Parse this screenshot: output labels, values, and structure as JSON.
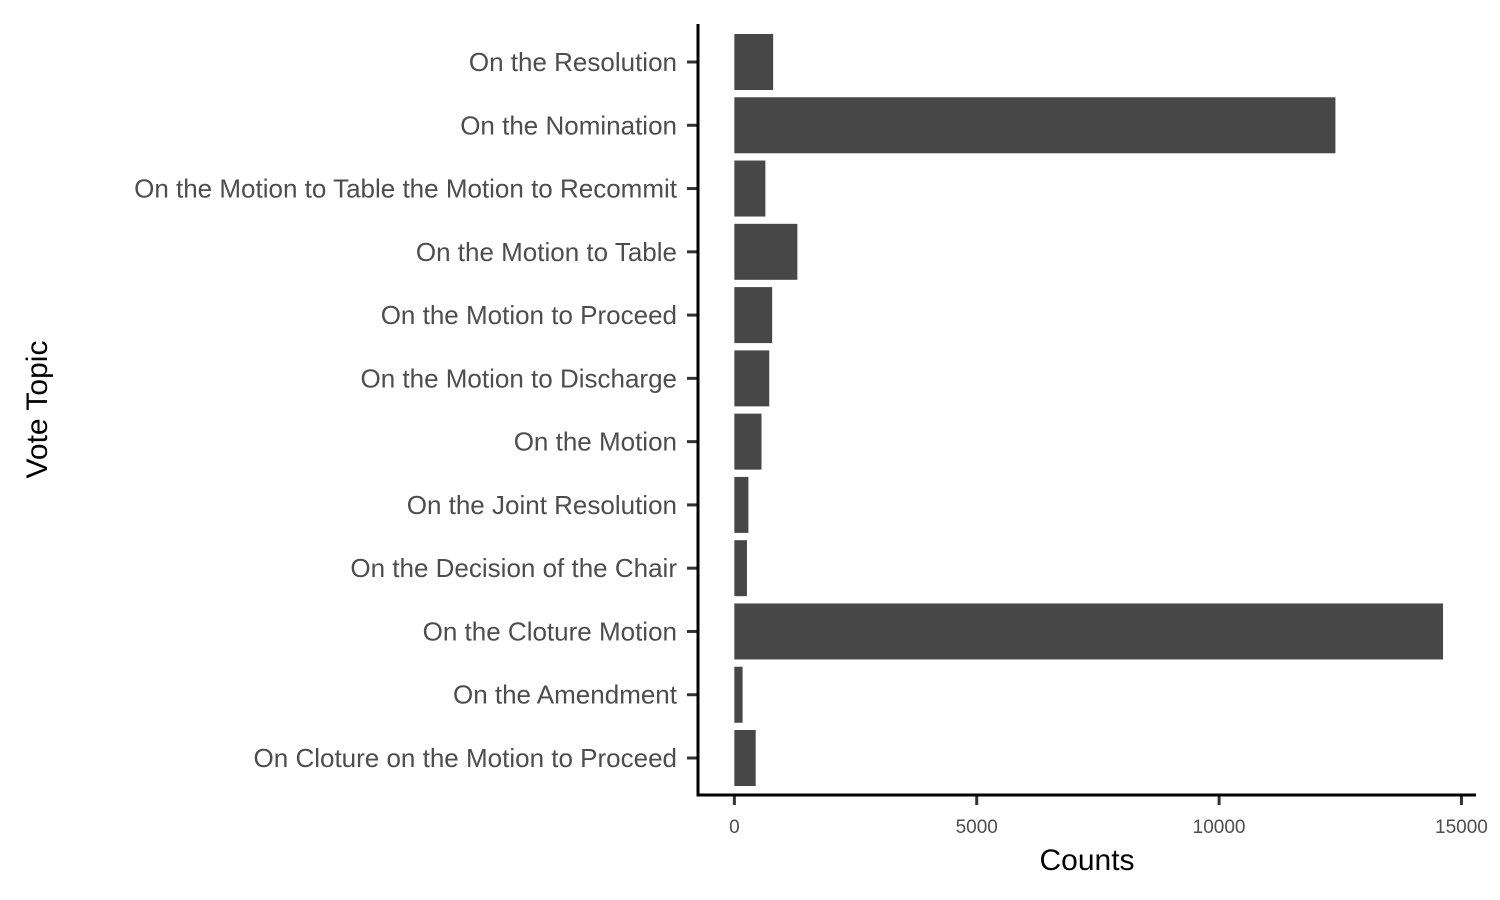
{
  "chart_data": {
    "type": "bar",
    "orientation": "horizontal",
    "title": "",
    "xlabel": "Counts",
    "ylabel": "Vote Topic",
    "categories": [
      "On the Resolution",
      "On the Nomination",
      "On the Motion to Table the Motion to Recommit",
      "On the Motion to Table",
      "On the Motion to Proceed",
      "On the Motion to Discharge",
      "On the Motion",
      "On the Joint Resolution",
      "On the Decision of the Chair",
      "On the Cloture Motion",
      "On the Amendment",
      "On Cloture on the Motion to Proceed"
    ],
    "values": [
      800,
      12400,
      640,
      1300,
      780,
      720,
      560,
      290,
      260,
      14620,
      170,
      440
    ],
    "xlim": [
      -750,
      15300
    ],
    "xticks": [
      0,
      5000,
      10000,
      15000
    ],
    "xtick_labels": [
      "0",
      "5000",
      "10000",
      "15000"
    ],
    "grid": false,
    "legend": "none",
    "bar_color": "#474747",
    "axis_color": "#000000",
    "tick_color": "#333333"
  }
}
